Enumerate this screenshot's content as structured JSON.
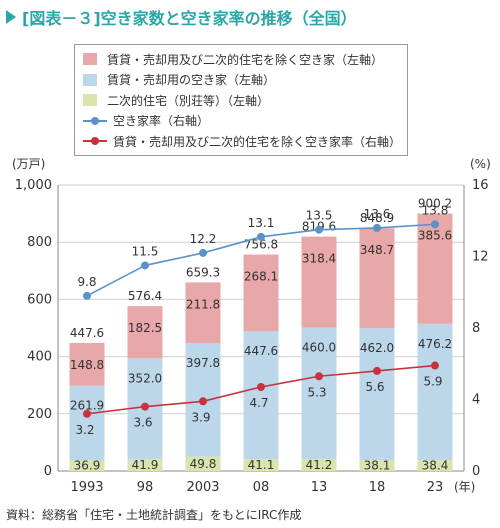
{
  "title": "[図表－３]空き家数と空き家率の推移（全国）",
  "source": "資料：総務省「住宅・土地統計調査」をもとにIRC作成",
  "colors": {
    "rental_sale": "#e8a7a8",
    "rental_sale_vacant": "#bcd6ea",
    "secondary": "#d8e6ad",
    "rate_line": "#5b93c8",
    "rate_excl_line": "#c8323c",
    "title": "#2ba6a6"
  },
  "legend": [
    {
      "label": "賃貸・売却用及び二次的住宅を除く空き家（左軸）",
      "kind": "box",
      "color": "#e8a7a8"
    },
    {
      "label": "賃貸・売却用の空き家（左軸）",
      "kind": "box",
      "color": "#bcd6ea"
    },
    {
      "label": "二次的住宅（別荘等）（左軸）",
      "kind": "box",
      "color": "#d8e6ad"
    },
    {
      "label": "空き家率（右軸）",
      "kind": "line",
      "color": "#5b93c8"
    },
    {
      "label": "賃貸・売却用及び二次的住宅を除く空き家率（右軸）",
      "kind": "line",
      "color": "#c8323c"
    }
  ],
  "chart_data": {
    "type": "bar",
    "categories": [
      "1993",
      "98",
      "2003",
      "08",
      "13",
      "18",
      "23"
    ],
    "x_unit": "(年)",
    "left_axis": {
      "unit": "(万戸)",
      "ticks": [
        "0",
        "200",
        "400",
        "600",
        "800",
        "1,000"
      ],
      "ylim": [
        0,
        1000
      ]
    },
    "right_axis": {
      "unit": "(%)",
      "ticks": [
        "0",
        "4",
        "8",
        "12",
        "16"
      ],
      "ylim": [
        0,
        16
      ]
    },
    "series": [
      {
        "name": "二次的住宅（別荘等）",
        "axis": "left",
        "kind": "bar",
        "values": [
          36.9,
          41.9,
          49.8,
          41.1,
          41.2,
          38.1,
          38.4
        ]
      },
      {
        "name": "賃貸・売却用の空き家",
        "axis": "left",
        "kind": "bar",
        "values": [
          261.9,
          352.0,
          397.8,
          447.6,
          460.0,
          462.0,
          476.2
        ]
      },
      {
        "name": "賃貸・売却用及び二次的住宅を除く空き家",
        "axis": "left",
        "kind": "bar",
        "values": [
          148.8,
          182.5,
          211.8,
          268.1,
          318.4,
          348.7,
          385.6
        ]
      },
      {
        "name": "空き家率",
        "axis": "right",
        "kind": "line",
        "values": [
          9.8,
          11.5,
          12.2,
          13.1,
          13.5,
          13.6,
          13.8
        ]
      },
      {
        "name": "賃貸・売却用及び二次的住宅を除く空き家率",
        "axis": "right",
        "kind": "line",
        "values": [
          3.2,
          3.6,
          3.9,
          4.7,
          5.3,
          5.6,
          5.9
        ]
      }
    ],
    "totals": [
      447.6,
      576.4,
      659.3,
      756.8,
      819.6,
      848.9,
      900.2
    ],
    "grid": true,
    "legend_position": "top"
  }
}
